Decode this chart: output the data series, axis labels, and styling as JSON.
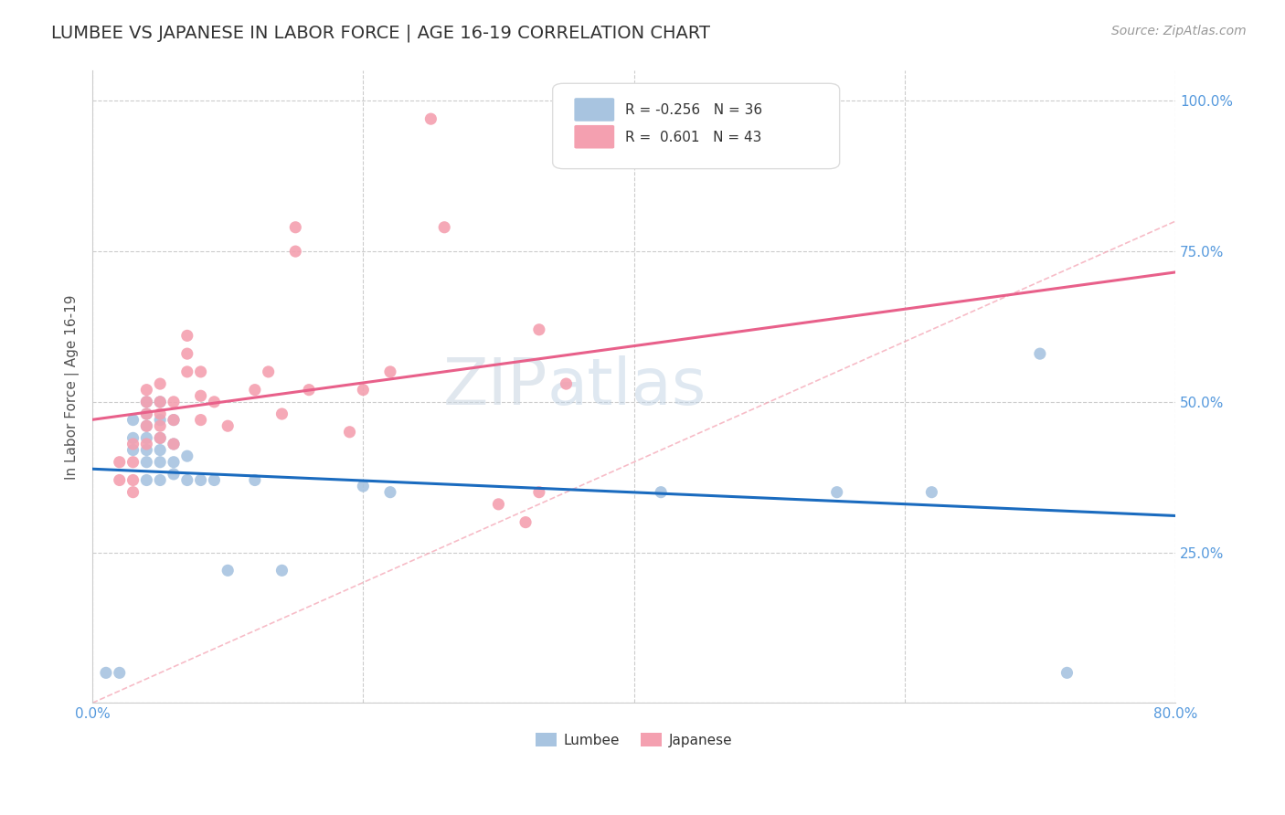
{
  "title": "LUMBEE VS JAPANESE IN LABOR FORCE | AGE 16-19 CORRELATION CHART",
  "source": "Source: ZipAtlas.com",
  "ylabel": "In Labor Force | Age 16-19",
  "xlim": [
    0.0,
    0.8
  ],
  "ylim": [
    0.0,
    1.05
  ],
  "watermark_text": "ZIPatlas",
  "lumbee_R": -0.256,
  "lumbee_N": 36,
  "japanese_R": 0.601,
  "japanese_N": 43,
  "lumbee_color": "#a8c4e0",
  "japanese_color": "#f4a0b0",
  "lumbee_line_color": "#1a6bbf",
  "japanese_line_color": "#e8608a",
  "lumbee_x": [
    0.01,
    0.02,
    0.03,
    0.03,
    0.03,
    0.04,
    0.04,
    0.04,
    0.04,
    0.04,
    0.04,
    0.04,
    0.05,
    0.05,
    0.05,
    0.05,
    0.05,
    0.05,
    0.06,
    0.06,
    0.06,
    0.06,
    0.07,
    0.07,
    0.08,
    0.09,
    0.1,
    0.12,
    0.14,
    0.2,
    0.22,
    0.42,
    0.55,
    0.62,
    0.7,
    0.72
  ],
  "lumbee_y": [
    0.05,
    0.05,
    0.42,
    0.44,
    0.47,
    0.37,
    0.4,
    0.42,
    0.44,
    0.46,
    0.48,
    0.5,
    0.37,
    0.4,
    0.42,
    0.44,
    0.47,
    0.5,
    0.38,
    0.4,
    0.43,
    0.47,
    0.37,
    0.41,
    0.37,
    0.37,
    0.22,
    0.37,
    0.22,
    0.36,
    0.35,
    0.35,
    0.35,
    0.35,
    0.58,
    0.05
  ],
  "japanese_x": [
    0.02,
    0.02,
    0.03,
    0.03,
    0.03,
    0.03,
    0.04,
    0.04,
    0.04,
    0.04,
    0.04,
    0.05,
    0.05,
    0.05,
    0.05,
    0.05,
    0.06,
    0.06,
    0.06,
    0.07,
    0.07,
    0.07,
    0.08,
    0.08,
    0.08,
    0.09,
    0.1,
    0.12,
    0.13,
    0.14,
    0.15,
    0.15,
    0.16,
    0.19,
    0.2,
    0.22,
    0.25,
    0.26,
    0.3,
    0.32,
    0.33,
    0.33,
    0.35
  ],
  "japanese_y": [
    0.37,
    0.4,
    0.35,
    0.37,
    0.4,
    0.43,
    0.43,
    0.46,
    0.48,
    0.5,
    0.52,
    0.44,
    0.46,
    0.48,
    0.5,
    0.53,
    0.43,
    0.47,
    0.5,
    0.55,
    0.58,
    0.61,
    0.47,
    0.51,
    0.55,
    0.5,
    0.46,
    0.52,
    0.55,
    0.48,
    0.75,
    0.79,
    0.52,
    0.45,
    0.52,
    0.55,
    0.97,
    0.79,
    0.33,
    0.3,
    0.35,
    0.62,
    0.53
  ],
  "background_color": "#ffffff",
  "grid_color": "#cccccc",
  "tick_color": "#5599dd",
  "title_fontsize": 14,
  "axis_label_fontsize": 11,
  "tick_fontsize": 11
}
